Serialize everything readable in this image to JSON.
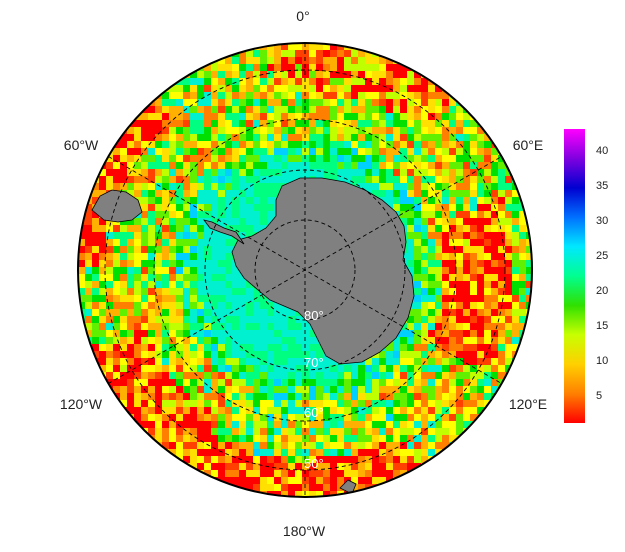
{
  "map": {
    "projection": "south-polar-stereographic",
    "longitude_labels": [
      "0°",
      "60°E",
      "120°E",
      "180°W",
      "120°W",
      "60°W"
    ],
    "latitude_labels": [
      "80°",
      "70°",
      "60°",
      "50°"
    ],
    "land_color": "#808080",
    "coastline_color": "#000000"
  },
  "colorbar": {
    "ticks": [
      "5",
      "10",
      "15",
      "20",
      "25",
      "30",
      "35",
      "40"
    ],
    "range": [
      1,
      43
    ],
    "colors": [
      "#ff0000",
      "#ff8000",
      "#ffd000",
      "#ffff00",
      "#c0ff00",
      "#00e000",
      "#00ff80",
      "#00f0ff",
      "#0080ff",
      "#0000d0",
      "#6000d0",
      "#c000ff",
      "#ff00ff"
    ]
  }
}
